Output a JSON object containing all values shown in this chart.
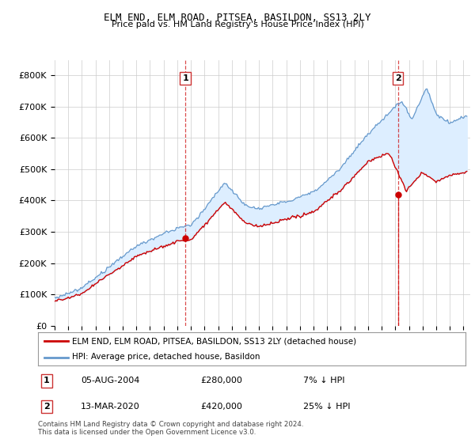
{
  "title": "ELM END, ELM ROAD, PITSEA, BASILDON, SS13 2LY",
  "subtitle": "Price paid vs. HM Land Registry's House Price Index (HPI)",
  "ylabel_ticks": [
    "£0",
    "£100K",
    "£200K",
    "£300K",
    "£400K",
    "£500K",
    "£600K",
    "£700K",
    "£800K"
  ],
  "ytick_values": [
    0,
    100000,
    200000,
    300000,
    400000,
    500000,
    600000,
    700000,
    800000
  ],
  "ylim": [
    0,
    850000
  ],
  "xlim_start": 1995.0,
  "xlim_end": 2025.5,
  "xtick_years": [
    1995,
    1996,
    1997,
    1998,
    1999,
    2000,
    2001,
    2002,
    2003,
    2004,
    2005,
    2006,
    2007,
    2008,
    2009,
    2010,
    2011,
    2012,
    2013,
    2014,
    2015,
    2016,
    2017,
    2018,
    2019,
    2020,
    2021,
    2022,
    2023,
    2024,
    2025
  ],
  "purchase1_x": 2004.59,
  "purchase1_y": 280000,
  "purchase2_x": 2020.19,
  "purchase2_y": 420000,
  "legend_line1": "ELM END, ELM ROAD, PITSEA, BASILDON, SS13 2LY (detached house)",
  "legend_line2": "HPI: Average price, detached house, Basildon",
  "annotation1_label": "1",
  "annotation1_date": "05-AUG-2004",
  "annotation1_price": "£280,000",
  "annotation1_hpi": "7% ↓ HPI",
  "annotation2_label": "2",
  "annotation2_date": "13-MAR-2020",
  "annotation2_price": "£420,000",
  "annotation2_hpi": "25% ↓ HPI",
  "footer": "Contains HM Land Registry data © Crown copyright and database right 2024.\nThis data is licensed under the Open Government Licence v3.0.",
  "red_color": "#cc0000",
  "blue_color": "#6699cc",
  "fill_color": "#ddeeff",
  "grid_color": "#cccccc",
  "bg_color": "#ffffff"
}
